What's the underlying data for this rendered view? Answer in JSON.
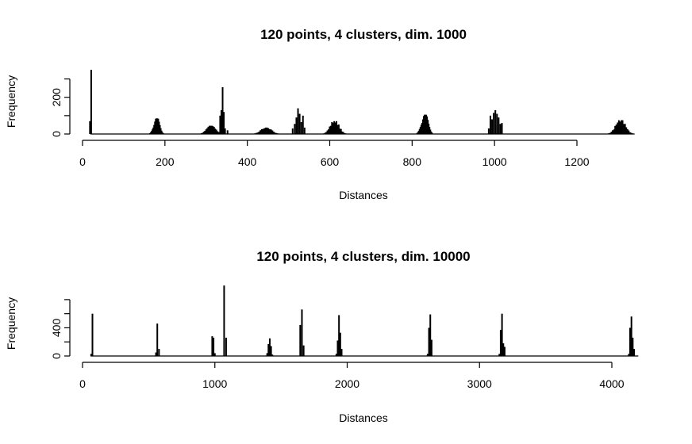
{
  "chart_data": [
    {
      "type": "bar",
      "title": "120 points, 4 clusters, dim. 1000",
      "xlabel": "Distances",
      "ylabel": "Frequency",
      "xlim": [
        0,
        1340
      ],
      "ylim": [
        0,
        350
      ],
      "x_ticks": [
        "0",
        "200",
        "400",
        "600",
        "800",
        "1000",
        "1200"
      ],
      "y_ticks": [
        "0",
        "200"
      ],
      "groups": [
        {
          "center": 20,
          "peaks": [
            [
              18,
              70
            ],
            [
              21,
              350
            ]
          ]
        },
        {
          "center": 180,
          "spread": 14,
          "max": 85
        },
        {
          "center": 312,
          "spread": 22,
          "max": 45
        },
        {
          "center": 339,
          "peaks": [
            [
              334,
              100
            ],
            [
              337,
              130
            ],
            [
              340,
              255
            ],
            [
              343,
              120
            ],
            [
              346,
              30
            ]
          ]
        },
        {
          "center": 350,
          "peaks": [
            [
              352,
              20
            ]
          ]
        },
        {
          "center": 446,
          "spread": 26,
          "max": 35
        },
        {
          "center": 525,
          "peaks": [
            [
              510,
              30
            ],
            [
              515,
              55
            ],
            [
              519,
              90
            ],
            [
              523,
              140
            ],
            [
              527,
              110
            ],
            [
              531,
              65
            ],
            [
              535,
              100
            ],
            [
              539,
              35
            ]
          ]
        },
        {
          "center": 612,
          "spread": 22,
          "max": 70
        },
        {
          "center": 831,
          "spread": 16,
          "max": 105
        },
        {
          "center": 1003,
          "peaks": [
            [
              986,
              30
            ],
            [
              990,
              100
            ],
            [
              994,
              80
            ],
            [
              998,
              115
            ],
            [
              1002,
              130
            ],
            [
              1006,
              110
            ],
            [
              1010,
              90
            ],
            [
              1014,
              55
            ],
            [
              1018,
              60
            ]
          ]
        },
        {
          "center": 1306,
          "spread": 24,
          "max": 75
        }
      ]
    },
    {
      "type": "bar",
      "title": "120 points, 4 clusters, dim. 10000",
      "xlabel": "Distances",
      "ylabel": "Frequency",
      "xlim": [
        0,
        4200
      ],
      "ylim": [
        0,
        900
      ],
      "x_ticks": [
        "0",
        "1000",
        "2000",
        "3000",
        "4000"
      ],
      "y_ticks": [
        "0",
        "400"
      ],
      "groups": [
        {
          "center": 75,
          "peaks": [
            [
              65,
              30
            ],
            [
              75,
              600
            ]
          ]
        },
        {
          "center": 565,
          "peaks": [
            [
              555,
              50
            ],
            [
              565,
              460
            ],
            [
              578,
              100
            ]
          ]
        },
        {
          "center": 1000,
          "peaks": [
            [
              980,
              280
            ],
            [
              990,
              260
            ],
            [
              1000,
              40
            ]
          ]
        },
        {
          "center": 1080,
          "peaks": [
            [
              1070,
              1000
            ],
            [
              1085,
              260
            ]
          ]
        },
        {
          "center": 1420,
          "peaks": [
            [
              1395,
              40
            ],
            [
              1405,
              170
            ],
            [
              1415,
              250
            ],
            [
              1425,
              140
            ],
            [
              1435,
              20
            ]
          ]
        },
        {
          "center": 1660,
          "peaks": [
            [
              1645,
              440
            ],
            [
              1658,
              660
            ],
            [
              1671,
              150
            ]
          ]
        },
        {
          "center": 1940,
          "peaks": [
            [
              1918,
              30
            ],
            [
              1928,
              220
            ],
            [
              1938,
              580
            ],
            [
              1948,
              330
            ],
            [
              1958,
              100
            ]
          ]
        },
        {
          "center": 2630,
          "peaks": [
            [
              2608,
              30
            ],
            [
              2618,
              400
            ],
            [
              2628,
              590
            ],
            [
              2638,
              230
            ]
          ]
        },
        {
          "center": 3170,
          "peaks": [
            [
              3150,
              30
            ],
            [
              3160,
              370
            ],
            [
              3170,
              600
            ],
            [
              3180,
              180
            ],
            [
              3190,
              130
            ]
          ]
        },
        {
          "center": 4150,
          "peaks": [
            [
              4128,
              30
            ],
            [
              4138,
              400
            ],
            [
              4148,
              560
            ],
            [
              4158,
              260
            ],
            [
              4168,
              100
            ]
          ]
        }
      ]
    }
  ]
}
